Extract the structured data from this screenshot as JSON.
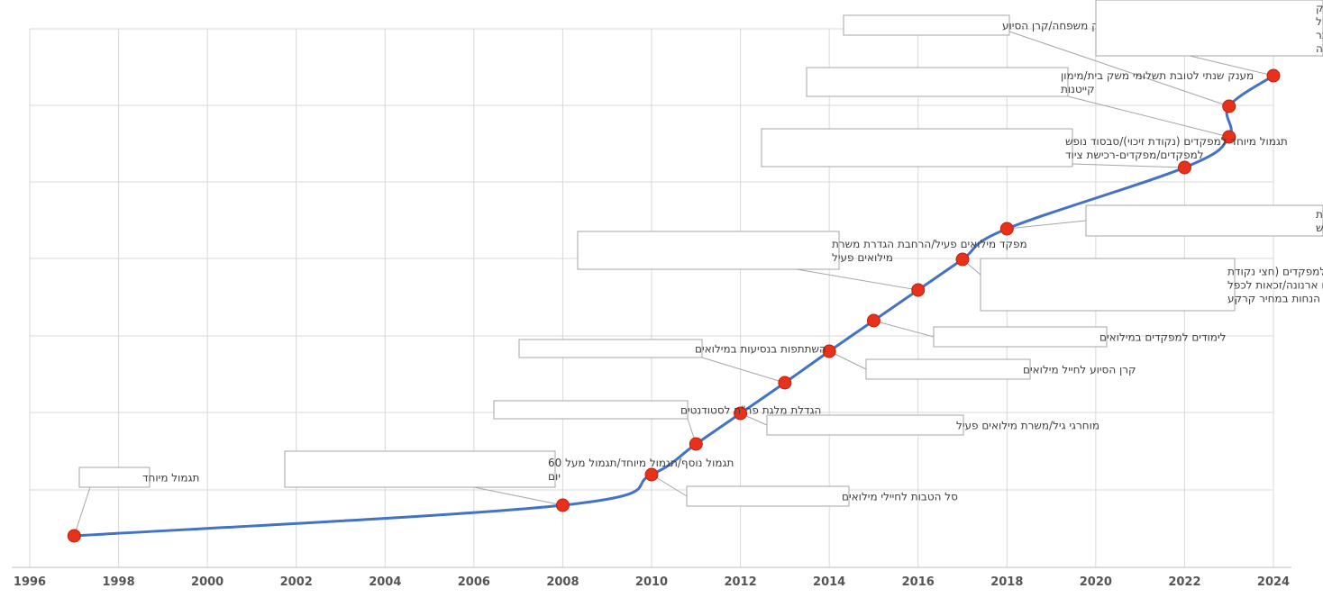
{
  "chart_data": {
    "type": "line",
    "title": "",
    "xlabel": "",
    "ylabel": "",
    "xlim": [
      1996,
      2024
    ],
    "x_ticks": [
      "1996",
      "1998",
      "2000",
      "2002",
      "2004",
      "2006",
      "2008",
      "2010",
      "2012",
      "2014",
      "2016",
      "2018",
      "2020",
      "2022",
      "2024"
    ],
    "y_ticks_labeled": false,
    "grid": true,
    "series_color": "#4472c4",
    "marker_color": "#e8311a",
    "points": [
      {
        "x": 1997,
        "y": 1,
        "label": [
          "תגמול מיוחד"
        ]
      },
      {
        "x": 2008,
        "y": 2,
        "label": [
          "תגמול נוסף/תגמול מיוחד/תגמול מעל 60",
          "יום"
        ]
      },
      {
        "x": 2010,
        "y": 3,
        "label": [
          "סל הטבות לחיילי מילואים"
        ]
      },
      {
        "x": 2011,
        "y": 4,
        "label": [
          "הגדלת מלגת פר\"ח לסטודנטים"
        ]
      },
      {
        "x": 2012,
        "y": 5,
        "label": [
          "מוחרגי גיל/משרת מילואים פעיל"
        ]
      },
      {
        "x": 2013,
        "y": 6,
        "label": [
          "השתתפות בנסיעות במילואים"
        ]
      },
      {
        "x": 2014,
        "y": 7,
        "label": [
          "קרן הסיוע לחייל מילואים"
        ]
      },
      {
        "x": 2015,
        "y": 8,
        "label": [
          "לימודים למפקדים במילואים"
        ]
      },
      {
        "x": 2016,
        "y": 9,
        "label": [
          "מפקד מילואים פעיל/הרחבת הגדרת משרת",
          "מילואים פעיל"
        ]
      },
      {
        "x": 2017,
        "y": 10,
        "label": [
          "תגמול מיוחד למפקדים (חצי נקודת",
          "זיכוי)/הנחה בתשלום ארנונה/זכאות לכפל",
          "הנחות במחיר קרקע"
        ]
      },
      {
        "x": 2018,
        "y": 11,
        "label": [
          "טיסה חופשית למוזיאונים/הכרה בהכשרת",
          "מפקדים לגמו\"ש"
        ]
      },
      {
        "x": 2022,
        "y": 12,
        "label": [
          "תגמול מיוחד למפקדים (נקודת זיכוי)/סבסוד נופש",
          "למפקדים/מפקדים-רכישת ציוד"
        ]
      },
      {
        "x": 2023,
        "y": 13,
        "label": [
          "מענק שנתי לטובת תשלומי משק בית/מימון",
          "קייטנות"
        ]
      },
      {
        "x": 2023,
        "y": 14,
        "label": [
          "מענק משפחה/קרן הסיוע"
        ]
      },
      {
        "x": 2024,
        "y": 15,
        "label": [
          "מענק הוצאות אישיות מוגדל/מענק",
          "משפחות מיוחדת/טיפול זוגי/טיפול",
          "נפשי משלים/מלגת סטודנטים/שובר",
          "חופשה/מענק לחימה/מענק התמדה"
        ]
      }
    ]
  }
}
